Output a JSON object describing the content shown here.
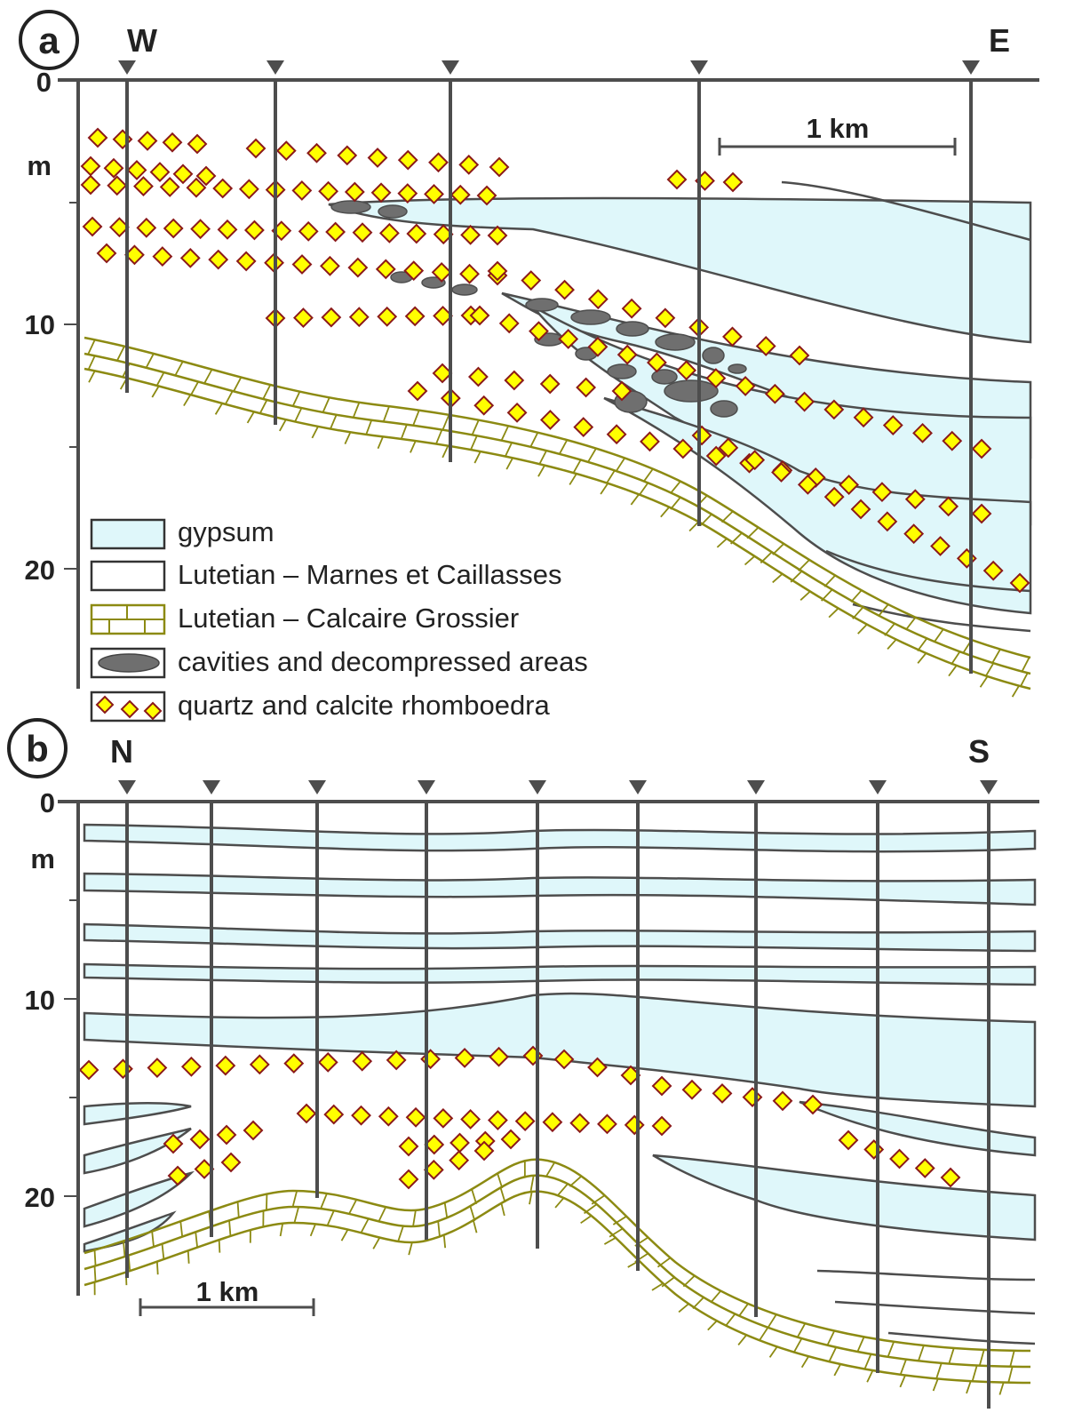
{
  "panels": {
    "a": {
      "letter": "a",
      "left_dir": "W",
      "right_dir": "E",
      "depth_unit": "m",
      "depth_ticks": [
        "0",
        "10",
        "20"
      ],
      "scale_label": "1 km"
    },
    "b": {
      "letter": "b",
      "left_dir": "N",
      "right_dir": "S",
      "depth_unit": "m",
      "depth_ticks": [
        "0",
        "10",
        "20"
      ],
      "scale_label": "1 km"
    }
  },
  "legend": {
    "gypsum": "gypsum",
    "marnes": "Lutetian – Marnes et Caillasses",
    "calcaire": "Lutetian – Calcaire Grossier",
    "cavities": "cavities and decompressed areas",
    "rhomb": "quartz and calcite rhomboedra"
  },
  "colors": {
    "gypsum_fill": "#dff7fa",
    "line": "#4d4d4d",
    "calcaire": "#8c8a12",
    "rhomb_fill": "#ffff00",
    "rhomb_edge": "#8b1a1a",
    "cavity": "#6f6f6f"
  }
}
